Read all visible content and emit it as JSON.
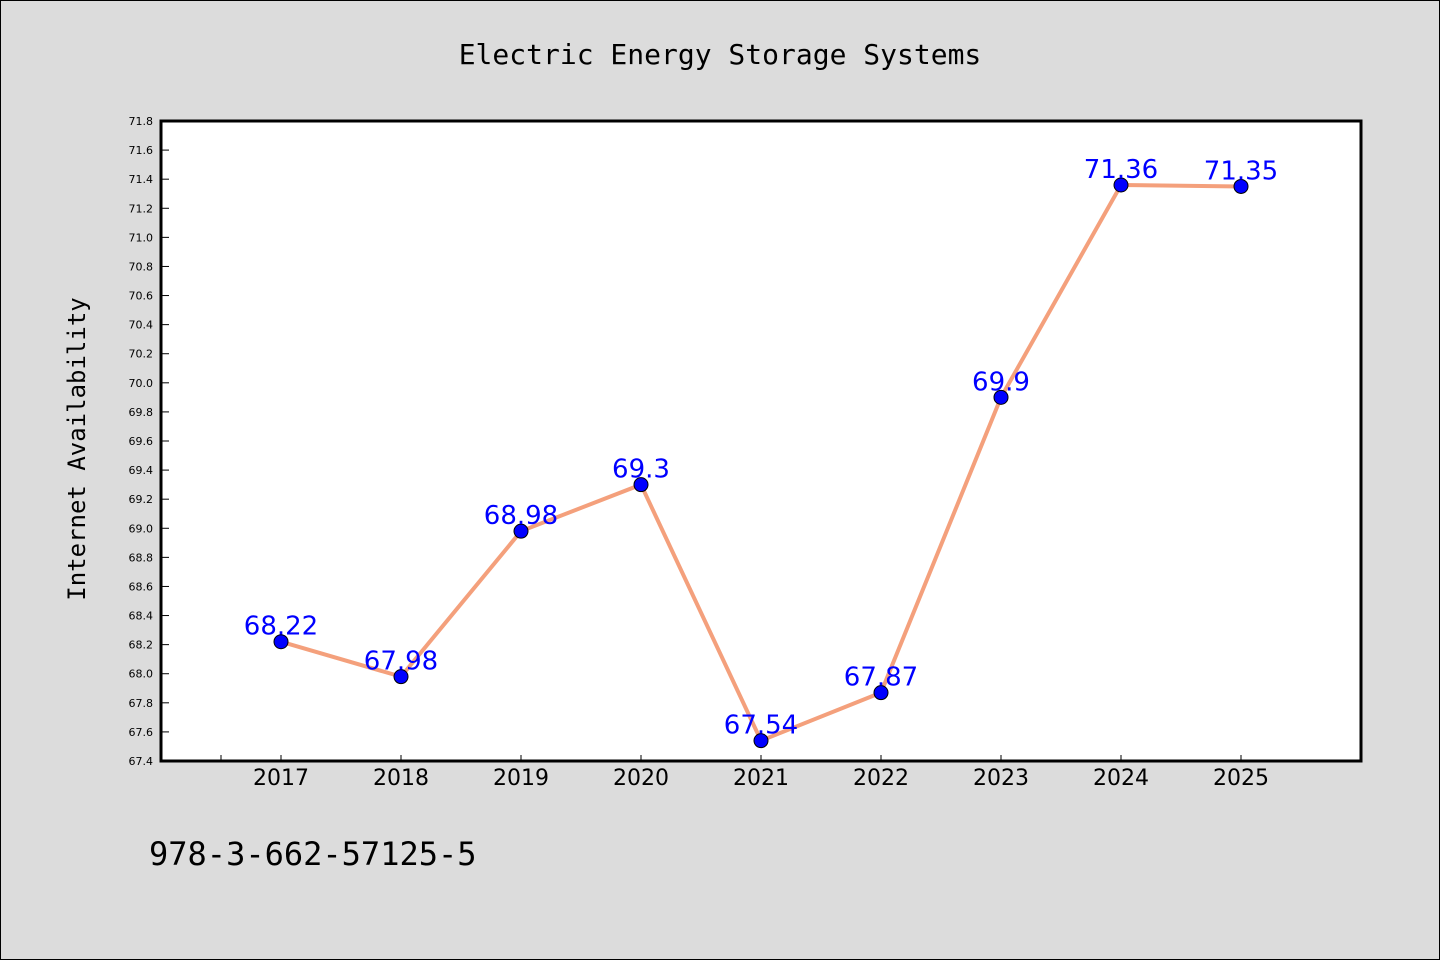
{
  "chart_data": {
    "type": "line",
    "title": "Electric Energy Storage Systems",
    "xlabel": "",
    "ylabel": "Internet Availability",
    "categories": [
      "2017",
      "2018",
      "2019",
      "2020",
      "2021",
      "2022",
      "2023",
      "2024",
      "2025"
    ],
    "values": [
      68.22,
      67.98,
      68.98,
      69.3,
      67.54,
      67.87,
      69.9,
      71.36,
      71.35
    ],
    "data_labels": [
      "68.22",
      "67.98",
      "68.98",
      "69.3",
      "67.54",
      "67.87",
      "69.9",
      "71.36",
      "71.35"
    ],
    "ylim": [
      67.4,
      71.8
    ],
    "yticks": [
      "67.4",
      "67.6",
      "67.8",
      "68.0",
      "68.2",
      "68.4",
      "68.6",
      "68.8",
      "69.0",
      "69.2",
      "69.4",
      "69.6",
      "69.8",
      "70.0",
      "70.2",
      "70.4",
      "70.6",
      "70.8",
      "71.0",
      "71.2",
      "71.4",
      "71.6",
      "71.8"
    ],
    "grid": false,
    "colors": {
      "line": "#f4a07c",
      "marker": "#0000ff",
      "label": "#0000ff",
      "background": "#dcdcdc",
      "plot_background": "#ffffff"
    }
  },
  "annotation": {
    "isbn": "978-3-662-57125-5"
  }
}
